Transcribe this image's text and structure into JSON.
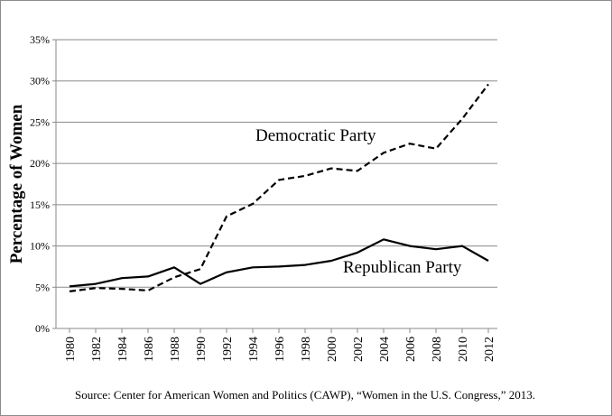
{
  "chart_data": {
    "type": "line",
    "ylabel": "Percentage of Women",
    "xlabel": "",
    "ylim": [
      0,
      35
    ],
    "yticks": [
      "0%",
      "5%",
      "10%",
      "15%",
      "20%",
      "25%",
      "30%",
      "35%"
    ],
    "ytick_values": [
      0,
      5,
      10,
      15,
      20,
      25,
      30,
      35
    ],
    "x": [
      "1980",
      "1982",
      "1984",
      "1986",
      "1988",
      "1990",
      "1992",
      "1994",
      "1996",
      "1998",
      "2000",
      "2002",
      "2004",
      "2006",
      "2008",
      "2010",
      "2012"
    ],
    "grid": "horizontal",
    "series": [
      {
        "name": "Democratic Party",
        "style": "dashed",
        "color": "#000000",
        "values": [
          4.5,
          4.9,
          4.8,
          4.6,
          6.2,
          7.2,
          13.6,
          15.1,
          18.0,
          18.5,
          19.4,
          19.1,
          21.3,
          22.4,
          21.8,
          25.4,
          29.6
        ]
      },
      {
        "name": "Republican Party",
        "style": "solid",
        "color": "#000000",
        "values": [
          5.1,
          5.4,
          6.1,
          6.3,
          7.4,
          5.4,
          6.8,
          7.4,
          7.5,
          7.7,
          8.2,
          9.2,
          10.8,
          10.0,
          9.6,
          10.0,
          8.2
        ]
      }
    ]
  },
  "source_text": "Source: Center for American Women and Politics (CAWP), “Women in the U.S. Congress,” 2013."
}
